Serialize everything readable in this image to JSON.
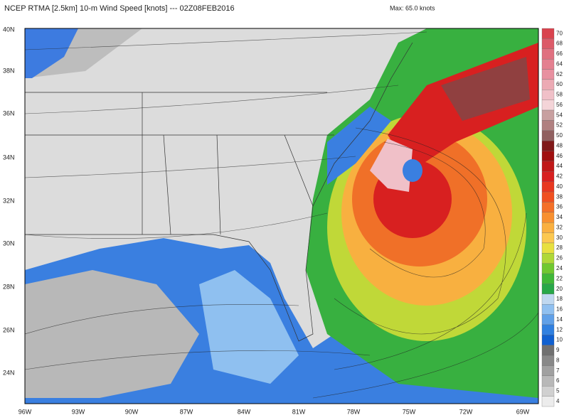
{
  "header": {
    "title": "NCEP RTMA [2.5km] 10-m Wind Speed [knots] --- 02Z08FEB2016",
    "max": "Max: 65.0 knots"
  },
  "lat_labels": [
    "40N",
    "38N",
    "36N",
    "34N",
    "32N",
    "30N",
    "28N",
    "26N",
    "24N"
  ],
  "lon_labels": [
    "96W",
    "93W",
    "90W",
    "87W",
    "84W",
    "81W",
    "78W",
    "75W",
    "72W",
    "69W"
  ],
  "colorbar": [
    {
      "label": "70",
      "color": "#d9434e"
    },
    {
      "label": "68",
      "color": "#dc5a68"
    },
    {
      "label": "66",
      "color": "#e07080"
    },
    {
      "label": "64",
      "color": "#e48090"
    },
    {
      "label": "62",
      "color": "#e890a0"
    },
    {
      "label": "60",
      "color": "#ecaab4"
    },
    {
      "label": "58",
      "color": "#f0c0c8"
    },
    {
      "label": "56",
      "color": "#f4d4d8"
    },
    {
      "label": "54",
      "color": "#c8a0a0"
    },
    {
      "label": "52",
      "color": "#b08080"
    },
    {
      "label": "50",
      "color": "#906060"
    },
    {
      "label": "48",
      "color": "#801818"
    },
    {
      "label": "46",
      "color": "#a01010"
    },
    {
      "label": "44",
      "color": "#c01818"
    },
    {
      "label": "42",
      "color": "#d82020"
    },
    {
      "label": "40",
      "color": "#e83820"
    },
    {
      "label": "38",
      "color": "#f05020"
    },
    {
      "label": "36",
      "color": "#f47028"
    },
    {
      "label": "34",
      "color": "#f89030"
    },
    {
      "label": "32",
      "color": "#fab040"
    },
    {
      "label": "30",
      "color": "#fcc850"
    },
    {
      "label": "28",
      "color": "#e8e040"
    },
    {
      "label": "26",
      "color": "#b0d838"
    },
    {
      "label": "24",
      "color": "#70c830"
    },
    {
      "label": "22",
      "color": "#40b838"
    },
    {
      "label": "20",
      "color": "#28a848"
    },
    {
      "label": "18",
      "color": "#c0d8f0"
    },
    {
      "label": "16",
      "color": "#90c0f0"
    },
    {
      "label": "14",
      "color": "#60a0e8"
    },
    {
      "label": "12",
      "color": "#3080e0"
    },
    {
      "label": "10",
      "color": "#1060d0"
    },
    {
      "label": "9",
      "color": "#707070"
    },
    {
      "label": "8",
      "color": "#888888"
    },
    {
      "label": "7",
      "color": "#a0a0a0"
    },
    {
      "label": "6",
      "color": "#b8b8b8"
    },
    {
      "label": "5",
      "color": "#d0d0d0"
    },
    {
      "label": "4",
      "color": "#ececec"
    }
  ]
}
